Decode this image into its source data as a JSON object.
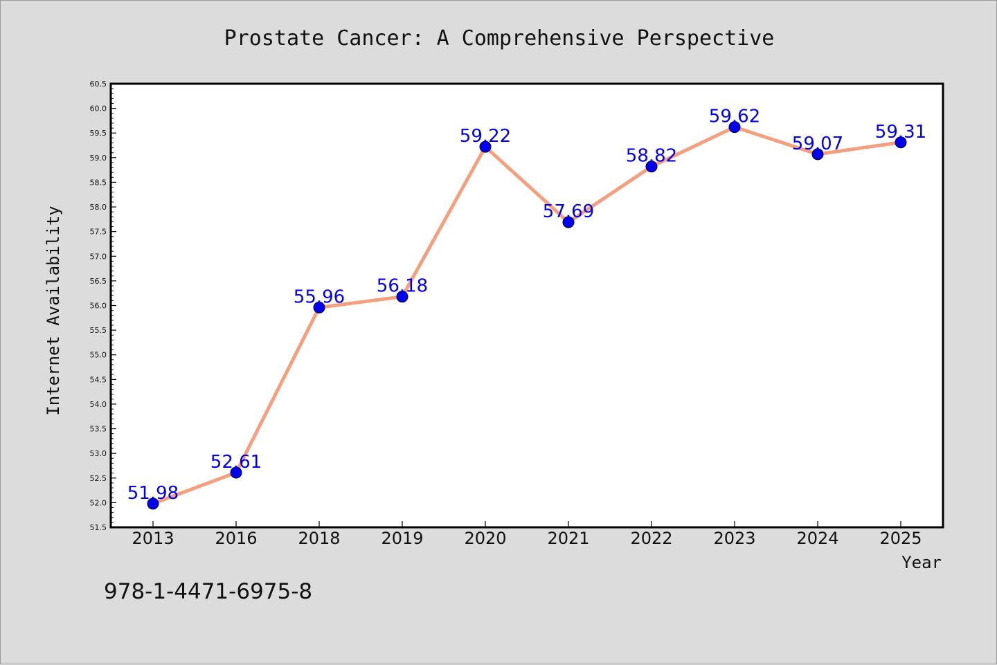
{
  "chart_data": {
    "type": "line",
    "title": "Prostate Cancer: A Comprehensive Perspective",
    "xlabel": "Year",
    "ylabel": "Internet Availability",
    "categories": [
      "2013",
      "2016",
      "2018",
      "2019",
      "2020",
      "2021",
      "2022",
      "2023",
      "2024",
      "2025"
    ],
    "values": [
      51.98,
      52.61,
      55.96,
      56.18,
      59.22,
      57.69,
      58.82,
      59.62,
      59.07,
      59.31
    ],
    "data_labels": [
      "51.98",
      "52.61",
      "55.96",
      "56.18",
      "59.22",
      "57.69",
      "58.82",
      "59.62",
      "59.07",
      "59.31"
    ],
    "ylim": [
      51.5,
      60.5
    ],
    "yticks": [
      "51.5",
      "52.0",
      "52.5",
      "53.0",
      "53.5",
      "54.0",
      "54.5",
      "55.0",
      "55.5",
      "56.0",
      "56.5",
      "57.0",
      "57.5",
      "58.0",
      "58.5",
      "59.0",
      "59.5",
      "60.0",
      "60.5"
    ],
    "grid": false,
    "line_color": "#f4a07e",
    "marker_color": "#0000ee",
    "label_color": "#0000ee"
  },
  "footer_text": "978-1-4471-6975-8"
}
